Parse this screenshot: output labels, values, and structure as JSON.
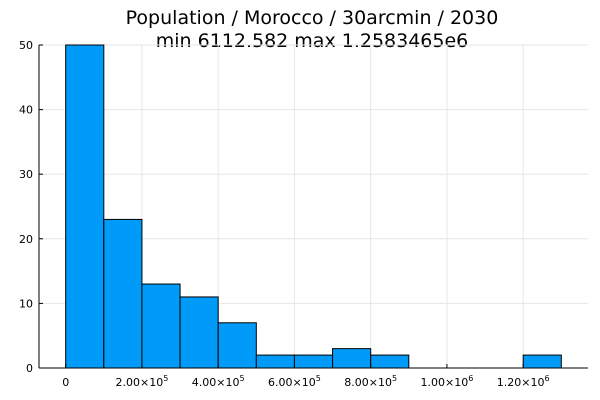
{
  "chart_data": {
    "type": "bar",
    "title": [
      "Population / Morocco / 30arcmin / 2030",
      "min 6112.582  max 1.2583465e6"
    ],
    "xlabel": "",
    "ylabel": "",
    "bin_width": 100000,
    "bins": [
      {
        "x0": 0,
        "x1": 100000,
        "count": 50
      },
      {
        "x0": 100000,
        "x1": 200000,
        "count": 23
      },
      {
        "x0": 200000,
        "x1": 300000,
        "count": 13
      },
      {
        "x0": 300000,
        "x1": 400000,
        "count": 11
      },
      {
        "x0": 400000,
        "x1": 500000,
        "count": 7
      },
      {
        "x0": 500000,
        "x1": 600000,
        "count": 2
      },
      {
        "x0": 600000,
        "x1": 700000,
        "count": 2
      },
      {
        "x0": 700000,
        "x1": 800000,
        "count": 3
      },
      {
        "x0": 800000,
        "x1": 900000,
        "count": 2
      },
      {
        "x0": 900000,
        "x1": 1000000,
        "count": 0
      },
      {
        "x0": 1000000,
        "x1": 1100000,
        "count": 0
      },
      {
        "x0": 1100000,
        "x1": 1200000,
        "count": 0
      },
      {
        "x0": 1200000,
        "x1": 1300000,
        "count": 2
      }
    ],
    "xlim": [
      -70000,
      1370000
    ],
    "ylim": [
      0,
      50
    ],
    "x_ticks": [
      {
        "value": 0,
        "mantissa": "0",
        "exponent": ""
      },
      {
        "value": 200000,
        "mantissa": "2.00×10",
        "exponent": "5"
      },
      {
        "value": 400000,
        "mantissa": "4.00×10",
        "exponent": "5"
      },
      {
        "value": 600000,
        "mantissa": "6.00×10",
        "exponent": "5"
      },
      {
        "value": 800000,
        "mantissa": "8.00×10",
        "exponent": "5"
      },
      {
        "value": 1000000,
        "mantissa": "1.00×10",
        "exponent": "6"
      },
      {
        "value": 1200000,
        "mantissa": "1.20×10",
        "exponent": "6"
      }
    ],
    "y_ticks": [
      0,
      10,
      20,
      30,
      40,
      50
    ],
    "grid": true,
    "legend": "none",
    "colors": {
      "bar_fill": "#009af9",
      "bar_stroke": "#000000",
      "grid": "#e6e6e6",
      "axis": "#000000"
    }
  }
}
